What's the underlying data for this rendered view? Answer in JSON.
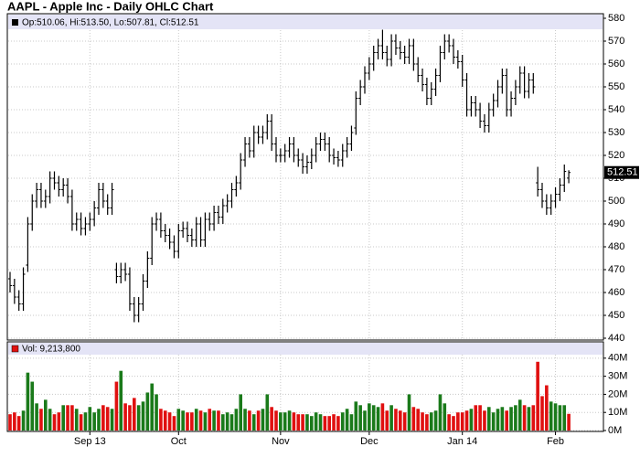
{
  "chart_data": {
    "type": "ohlc",
    "title": "AAPL - Apple Inc - Daily OHLC Chart",
    "price_header": "Op:510.06, Hi:513.50, Lo:507.81, Cl:512.51",
    "volume_header": "Vol: 9,213,800",
    "categories": [
      null,
      null,
      null,
      null,
      null,
      null,
      null,
      null,
      null,
      null,
      null,
      null,
      null,
      null,
      null,
      null,
      null,
      null,
      "Sep 13",
      null,
      null,
      null,
      null,
      null,
      null,
      null,
      null,
      null,
      null,
      null,
      null,
      null,
      null,
      null,
      null,
      null,
      null,
      null,
      "Oct",
      null,
      null,
      null,
      null,
      null,
      null,
      null,
      null,
      null,
      null,
      null,
      null,
      null,
      null,
      null,
      null,
      null,
      null,
      null,
      null,
      null,
      null,
      "Nov",
      null,
      null,
      null,
      null,
      null,
      null,
      null,
      null,
      null,
      null,
      null,
      null,
      null,
      null,
      null,
      null,
      null,
      null,
      null,
      "Dec",
      null,
      null,
      null,
      null,
      null,
      null,
      null,
      null,
      null,
      null,
      null,
      null,
      null,
      null,
      null,
      null,
      null,
      null,
      null,
      null,
      "Jan 14",
      null,
      null,
      null,
      null,
      null,
      null,
      null,
      null,
      null,
      null,
      null,
      null,
      null,
      null,
      null,
      null,
      null,
      null,
      null,
      null,
      "Feb",
      null,
      null,
      null
    ],
    "open": [
      466,
      463,
      458,
      455,
      472,
      490,
      500,
      505,
      500,
      502,
      510,
      508,
      505,
      507,
      502,
      490,
      492,
      488,
      490,
      492,
      497,
      505,
      500,
      497,
      470,
      467,
      470,
      468,
      455,
      450,
      455,
      465,
      475,
      490,
      492,
      487,
      485,
      482,
      478,
      487,
      488,
      485,
      483,
      490,
      483,
      492,
      490,
      495,
      493,
      498,
      500,
      505,
      508,
      518,
      525,
      522,
      530,
      528,
      530,
      535,
      525,
      520,
      520,
      522,
      525,
      520,
      518,
      515,
      517,
      520,
      525,
      527,
      525,
      520,
      519,
      518,
      522,
      525,
      532,
      545,
      550,
      556,
      560,
      565,
      568,
      565,
      562,
      570,
      567,
      565,
      563,
      568,
      560,
      555,
      551,
      545,
      549,
      555,
      565,
      570,
      568,
      563,
      561,
      553,
      540,
      543,
      540,
      535,
      533,
      540,
      544,
      550,
      555,
      540,
      545,
      550,
      556,
      548,
      553,
      508,
      505,
      500,
      497,
      500,
      503,
      507,
      510.06
    ],
    "high": [
      469,
      466,
      461,
      471,
      493,
      503,
      508,
      508,
      505,
      513,
      513,
      511,
      510,
      510,
      505,
      495,
      495,
      493,
      495,
      500,
      508,
      508,
      503,
      508,
      473,
      473,
      473,
      471,
      458,
      458,
      468,
      478,
      493,
      495,
      495,
      490,
      488,
      485,
      490,
      491,
      491,
      488,
      493,
      493,
      495,
      495,
      498,
      498,
      501,
      503,
      508,
      511,
      521,
      528,
      528,
      533,
      533,
      533,
      538,
      538,
      528,
      523,
      525,
      528,
      528,
      523,
      521,
      520,
      523,
      528,
      530,
      530,
      528,
      523,
      522,
      525,
      528,
      533,
      548,
      553,
      559,
      563,
      568,
      571,
      575,
      568,
      573,
      573,
      570,
      568,
      571,
      571,
      563,
      558,
      554,
      552,
      558,
      568,
      573,
      573,
      571,
      566,
      564,
      556,
      546,
      546,
      543,
      538,
      543,
      547,
      553,
      558,
      558,
      548,
      553,
      559,
      559,
      556,
      556,
      515,
      508,
      503,
      503,
      506,
      510,
      516,
      513.5
    ],
    "low": [
      460,
      455,
      452,
      452,
      469,
      487,
      497,
      497,
      497,
      499,
      505,
      502,
      502,
      499,
      487,
      487,
      485,
      485,
      487,
      489,
      494,
      497,
      494,
      494,
      464,
      464,
      465,
      452,
      447,
      447,
      452,
      462,
      472,
      487,
      484,
      482,
      479,
      475,
      475,
      484,
      482,
      480,
      480,
      480,
      480,
      487,
      487,
      490,
      490,
      495,
      497,
      502,
      505,
      515,
      519,
      519,
      525,
      525,
      527,
      522,
      517,
      517,
      517,
      519,
      517,
      515,
      512,
      512,
      514,
      517,
      522,
      522,
      517,
      516,
      515,
      515,
      519,
      522,
      529,
      542,
      547,
      553,
      557,
      562,
      562,
      559,
      559,
      564,
      562,
      560,
      560,
      557,
      552,
      548,
      542,
      542,
      546,
      552,
      562,
      565,
      560,
      558,
      550,
      537,
      537,
      537,
      532,
      530,
      530,
      537,
      541,
      547,
      537,
      537,
      542,
      547,
      545,
      545,
      547,
      502,
      497,
      494,
      494,
      497,
      500,
      504,
      507.81
    ],
    "close": [
      463,
      458,
      455,
      468,
      490,
      500,
      505,
      500,
      502,
      510,
      508,
      505,
      507,
      502,
      490,
      492,
      488,
      490,
      492,
      497,
      505,
      500,
      497,
      505,
      467,
      470,
      468,
      455,
      450,
      455,
      465,
      475,
      490,
      492,
      487,
      485,
      482,
      478,
      487,
      488,
      485,
      483,
      490,
      483,
      492,
      490,
      495,
      493,
      498,
      500,
      505,
      508,
      518,
      525,
      522,
      530,
      528,
      530,
      535,
      525,
      520,
      520,
      522,
      525,
      520,
      518,
      515,
      517,
      520,
      525,
      527,
      525,
      520,
      519,
      518,
      522,
      525,
      530,
      545,
      550,
      556,
      560,
      565,
      568,
      565,
      562,
      570,
      567,
      565,
      563,
      568,
      560,
      555,
      551,
      545,
      549,
      555,
      565,
      570,
      568,
      563,
      561,
      553,
      540,
      543,
      540,
      535,
      533,
      540,
      544,
      550,
      555,
      540,
      545,
      550,
      556,
      548,
      553,
      550,
      505,
      500,
      497,
      500,
      503,
      507,
      513,
      512.51
    ],
    "volume": [
      9,
      10,
      8,
      11,
      32,
      27,
      15,
      12,
      17,
      12,
      9,
      10,
      14,
      14,
      14,
      12,
      9,
      10,
      13,
      10,
      12,
      14,
      13,
      12,
      27,
      33,
      15,
      14,
      18,
      14,
      16,
      21,
      26,
      20,
      12,
      11,
      10,
      8,
      12,
      11,
      10,
      10,
      12,
      11,
      10,
      12,
      11,
      11,
      9,
      10,
      9,
      12,
      20,
      12,
      11,
      9,
      11,
      12,
      20,
      13,
      11,
      10,
      10,
      11,
      10,
      9,
      9,
      9,
      8,
      10,
      9,
      8,
      8,
      9,
      8,
      10,
      12,
      9,
      16,
      14,
      11,
      15,
      14,
      13,
      15,
      11,
      14,
      12,
      11,
      10,
      20,
      13,
      12,
      10,
      9,
      10,
      11,
      20,
      15,
      9,
      8,
      10,
      10,
      11,
      12,
      14,
      14,
      11,
      13,
      10,
      12,
      13,
      11,
      13,
      14,
      17,
      14,
      13,
      14,
      38,
      19,
      25,
      16,
      15,
      14,
      14,
      9.2138
    ],
    "ylim": [
      440,
      580
    ],
    "yticks": [
      440,
      450,
      460,
      470,
      480,
      490,
      500,
      510,
      520,
      530,
      540,
      550,
      560,
      570,
      580
    ],
    "volume_ylim": [
      0,
      48
    ],
    "volume_yticks": [
      {
        "value": 0,
        "label": "0M"
      },
      {
        "value": 10,
        "label": "10M"
      },
      {
        "value": 20,
        "label": "20M"
      },
      {
        "value": 30,
        "label": "30M"
      },
      {
        "value": 40,
        "label": "40M"
      }
    ],
    "bar_color": "#000000",
    "up_color": "#1a7a1a",
    "down_color": "#e01010",
    "grid": true
  }
}
